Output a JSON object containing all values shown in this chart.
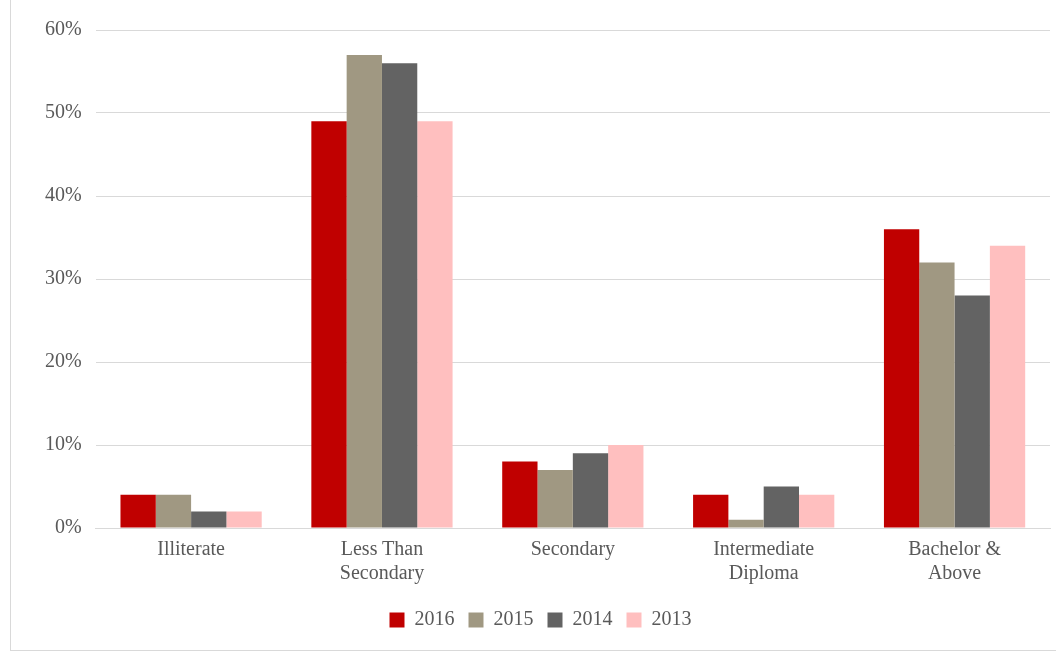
{
  "chart_data": {
    "type": "bar",
    "categories": [
      "Illiterate",
      "Less Than Secondary",
      "Secondary",
      "Intermediate Diploma",
      "Bachelor & Above"
    ],
    "series": [
      {
        "name": "2016",
        "color": "#c00000",
        "values": [
          4,
          49,
          8,
          4,
          36
        ]
      },
      {
        "name": "2015",
        "color": "#a09882",
        "values": [
          4,
          57,
          7,
          1,
          32
        ]
      },
      {
        "name": "2014",
        "color": "#636363",
        "values": [
          2,
          56,
          9,
          5,
          28
        ]
      },
      {
        "name": "2013",
        "color": "#ffbfbf",
        "values": [
          2,
          49,
          10,
          4,
          34
        ]
      }
    ],
    "ylim": [
      0,
      60
    ],
    "yticks": [
      {
        "value": 0,
        "label": "0%"
      },
      {
        "value": 10,
        "label": "10%"
      },
      {
        "value": 20,
        "label": "20%"
      },
      {
        "value": 30,
        "label": "30%"
      },
      {
        "value": 40,
        "label": "40%"
      },
      {
        "value": 50,
        "label": "50%"
      },
      {
        "value": 60,
        "label": "60%"
      }
    ],
    "grid": "y",
    "legend": "bottom"
  }
}
